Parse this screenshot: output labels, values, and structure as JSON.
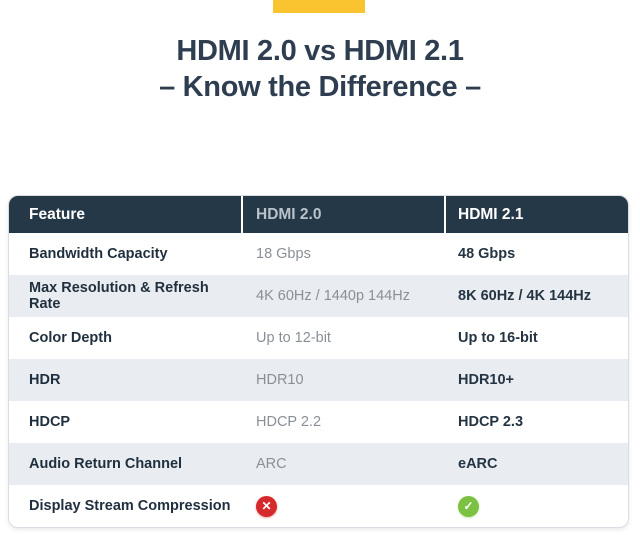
{
  "banner": {
    "color": "#F9C42F"
  },
  "title": {
    "line1": "HDMI 2.0 vs HDMI 2.1",
    "line2": "– Know the Difference –",
    "color": "#2E3E50"
  },
  "table": {
    "headers": [
      "Feature",
      "HDMI 2.0",
      "HDMI 2.1"
    ],
    "rows": [
      {
        "feature": "Bandwidth Capacity",
        "hdmi20": "18 Gbps",
        "hdmi21": "48 Gbps"
      },
      {
        "feature": "Max Resolution & Refresh Rate",
        "hdmi20": "4K 60Hz / 1440p 144Hz",
        "hdmi21": "8K 60Hz / 4K 144Hz"
      },
      {
        "feature": "Color Depth",
        "hdmi20": "Up to 12-bit",
        "hdmi21": "Up to 16-bit"
      },
      {
        "feature": "HDR",
        "hdmi20": "HDR10",
        "hdmi21": "HDR10+"
      },
      {
        "feature": "HDCP",
        "hdmi20": "HDCP 2.2",
        "hdmi21": "HDCP 2.3"
      },
      {
        "feature": "Audio Return Channel",
        "hdmi20": "ARC",
        "hdmi21": "eARC"
      },
      {
        "feature": "Display Stream Compression",
        "hdmi20": "",
        "hdmi21": ""
      }
    ],
    "icons": {
      "cross": {
        "glyph": "✕",
        "bg": "#D5292B",
        "meaning": "not supported"
      },
      "check": {
        "glyph": "✓",
        "bg": "#7CC142",
        "meaning": "supported"
      }
    },
    "colors": {
      "header_bg": "#253847",
      "header_text": "#FFFFFF",
      "header_text_hdmi20": "#B9C2CB",
      "row_alt_bg": "#E9EDF2",
      "feature_text": "#1F2F3E",
      "hdmi20_text": "#8A8F97",
      "hdmi21_text": "#243442",
      "table_border": "#D9DDE2"
    }
  },
  "chart_data": {
    "type": "table",
    "title": "HDMI 2.0 vs HDMI 2.1 – Know the Difference –",
    "columns": [
      "Feature",
      "HDMI 2.0",
      "HDMI 2.1"
    ],
    "rows": [
      [
        "Bandwidth Capacity",
        "18 Gbps",
        "48 Gbps"
      ],
      [
        "Max Resolution & Refresh Rate",
        "4K 60Hz / 1440p 144Hz",
        "8K 60Hz / 4K 144Hz"
      ],
      [
        "Color Depth",
        "Up to 12-bit",
        "Up to 16-bit"
      ],
      [
        "HDR",
        "HDR10",
        "HDR10+"
      ],
      [
        "HDCP",
        "HDCP 2.2",
        "HDCP 2.3"
      ],
      [
        "Audio Return Channel",
        "ARC",
        "eARC"
      ],
      [
        "Display Stream Compression",
        "✕",
        "✓"
      ]
    ]
  }
}
